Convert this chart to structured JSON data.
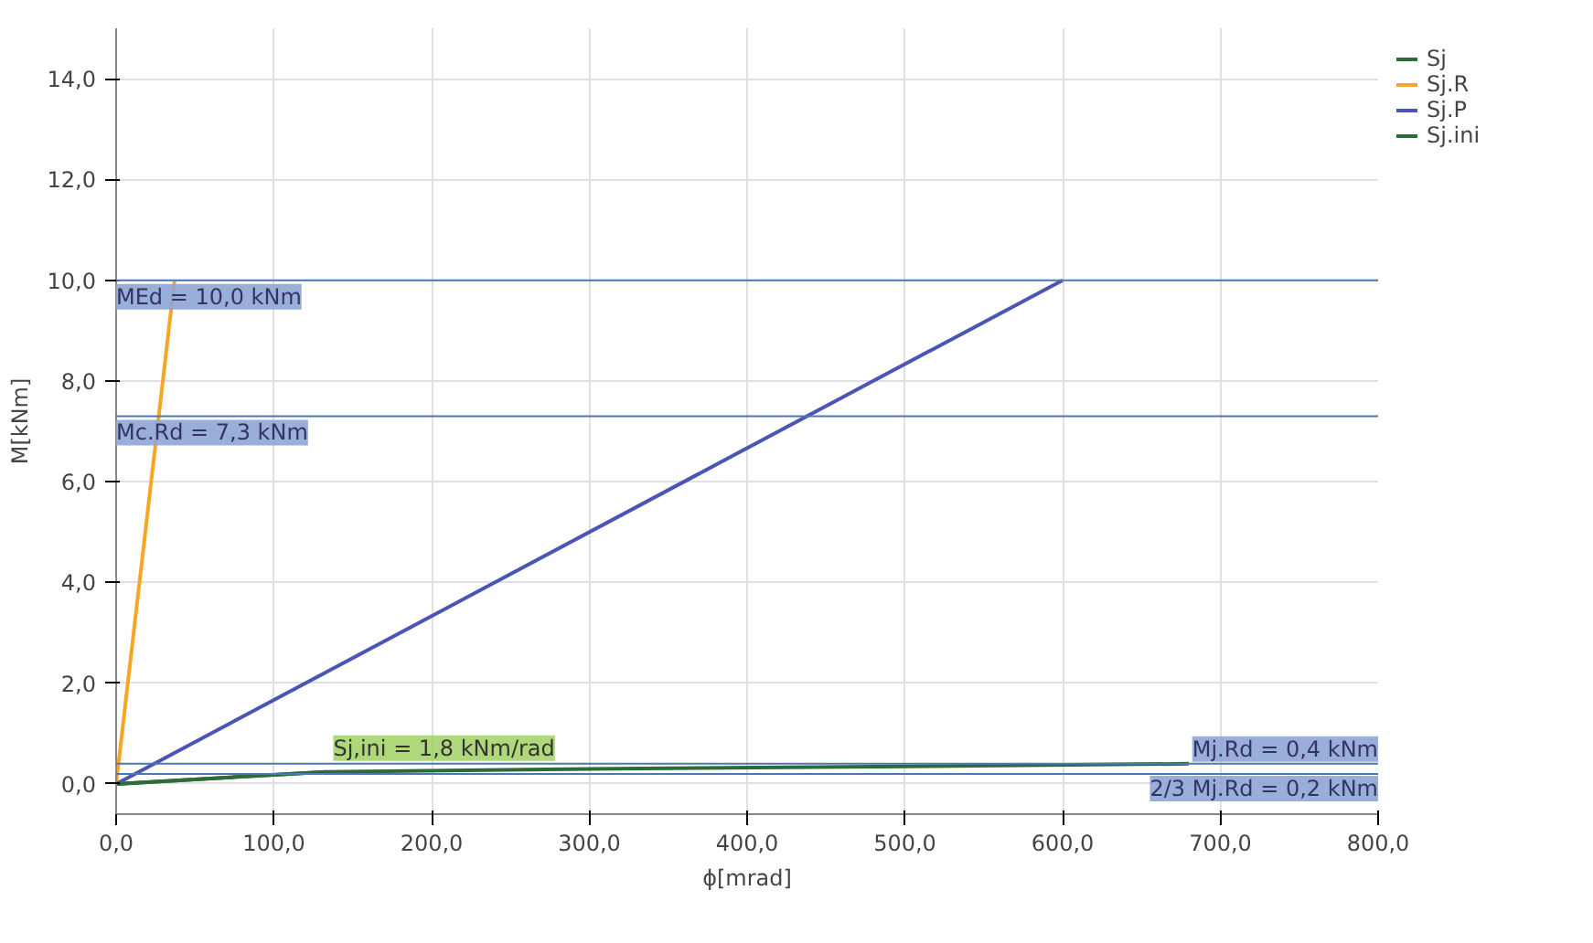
{
  "chart_data": {
    "type": "line",
    "xlabel": "ϕ[mrad]",
    "ylabel": "M[kNm]",
    "series": [
      {
        "name": "Sj",
        "color": "#2e6b3a",
        "x": [
          0,
          133,
          300,
          500,
          680
        ],
        "values": [
          0,
          0.24,
          0.3,
          0.35,
          0.4
        ]
      },
      {
        "name": "Sj.R",
        "color": "#f5a623",
        "x": [
          0,
          37
        ],
        "values": [
          0,
          10
        ]
      },
      {
        "name": "Sj.P",
        "color": "#4b55b5",
        "x": [
          0,
          600
        ],
        "values": [
          0,
          10
        ]
      },
      {
        "name": "Sj.ini",
        "color": "#2e6b3a",
        "x": [
          0,
          133
        ],
        "values": [
          0,
          0.24
        ]
      }
    ],
    "xlim": [
      0,
      800
    ],
    "ylim": [
      -0.6,
      15
    ],
    "xticks": [
      {
        "value": 0,
        "label": "0,0"
      },
      {
        "value": 100,
        "label": "100,0"
      },
      {
        "value": 200,
        "label": "200,0"
      },
      {
        "value": 300,
        "label": "300,0"
      },
      {
        "value": 400,
        "label": "400,0"
      },
      {
        "value": 500,
        "label": "500,0"
      },
      {
        "value": 600,
        "label": "600,0"
      },
      {
        "value": 700,
        "label": "700,0"
      },
      {
        "value": 800,
        "label": "800,0"
      }
    ],
    "yticks": [
      {
        "value": 0,
        "label": "0,0"
      },
      {
        "value": 2,
        "label": "2,0"
      },
      {
        "value": 4,
        "label": "4,0"
      },
      {
        "value": 6,
        "label": "6,0"
      },
      {
        "value": 8,
        "label": "8,0"
      },
      {
        "value": 10,
        "label": "10,0"
      },
      {
        "value": 12,
        "label": "12,0"
      },
      {
        "value": 14,
        "label": "14,0"
      }
    ],
    "ref_lines": [
      {
        "axis": "y",
        "value": 10,
        "label": "MEd = 10,0 kNm",
        "color": "#4a78b0"
      },
      {
        "axis": "y",
        "value": 7.3,
        "label": "Mc.Rd = 7,3 kNm",
        "color": "#4a78b0"
      },
      {
        "axis": "y",
        "value": 0.4,
        "label": "Mj.Rd = 0,4 kNm",
        "color": "#4a78b0"
      },
      {
        "axis": "y",
        "value": 0.2,
        "label": "2/3 Mj.Rd = 0,2 kNm",
        "color": "#4a78b0"
      }
    ],
    "annotations": [
      {
        "text": "Sj,ini = 1,8 kNm/rad",
        "x": 133,
        "y": 0.24
      }
    ],
    "grid": true,
    "legend": "top right"
  }
}
